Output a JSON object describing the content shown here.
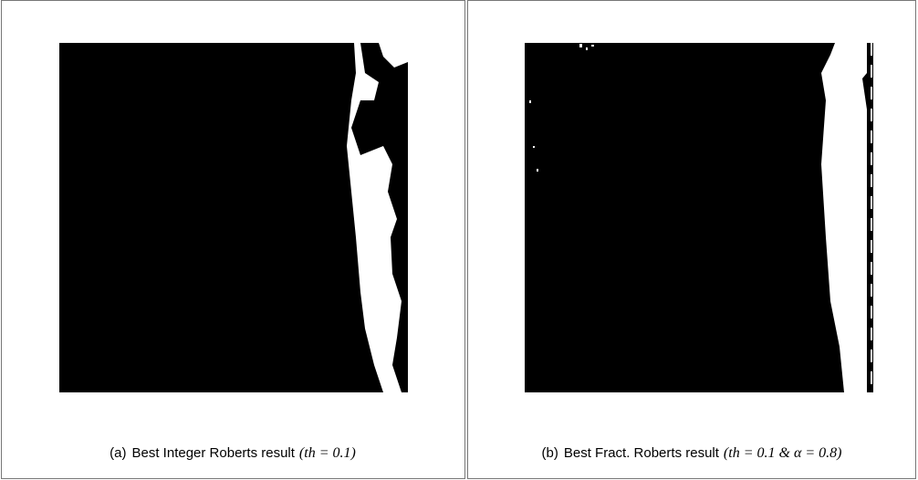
{
  "panels": [
    {
      "caption": {
        "label": "(a)",
        "text": "Best Integer Roberts result",
        "math": "(th = 0.1)"
      }
    },
    {
      "caption": {
        "label": "(b)",
        "text": "Best Fract. Roberts result",
        "math": "(th = 0.1 & α = 0.8)"
      }
    }
  ]
}
